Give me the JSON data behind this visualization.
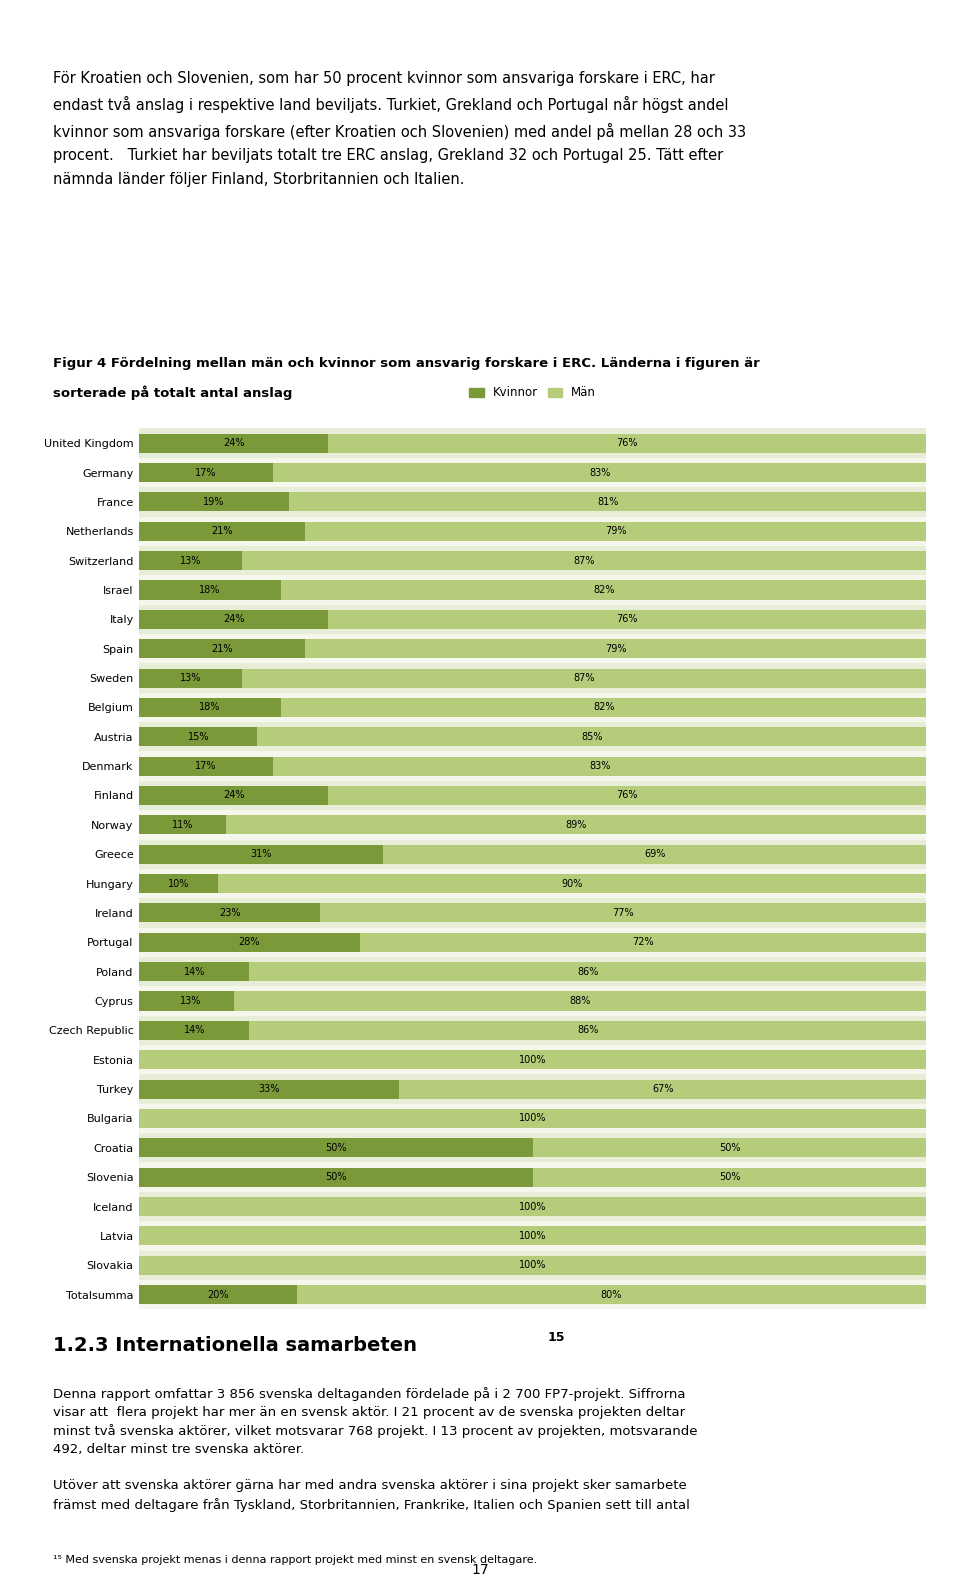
{
  "title_line1": "Figur 4 Fördelning mellan män och kvinnor som ansvarig forskare i ERC. Länderna i figuren är",
  "title_line2": "sorterade på totalt antal anslag",
  "legend_labels": [
    "Kvinnor",
    "Män"
  ],
  "color_kvinnor": "#7a9a3a",
  "color_man": "#b5cc7a",
  "color_bg_odd": "#e8edd8",
  "color_bg_even": "#f5f7ed",
  "text_above": "För Kroatien och Slovenien, som har 50 procent kvinnor som ansvariga forskare i ERC, har\nendast två anslag i respektive land beviljats. Turkiet, Grekland och Portugal når högst andel\nkvinnor som ansvariga forskare (efter Kroatien och Slovenien) med andel på mellan 28 och 33\nprocent.   Turkiet har beviljats totalt tre ERC anslag, Grekland 32 och Portugal 25. Tätt efter\nnämnda länder följer Finland, Storbritannien och Italien.",
  "section_title": "1.2.3 Internationella samarbeten",
  "section_super": "15",
  "para1": "Denna rapport omfattar 3 856 svenska deltaganden fördelade på i 2 700 FP7-projekt. Siffrorna\nvisar att  flera projekt har mer än en svensk aktör. I 21 procent av de svenska projekten deltar\nminst två svenska aktörer, vilket motsvarar 768 projekt. I 13 procent av projekten, motsvarande\n492, deltar minst tre svenska aktörer.",
  "para2": "Utöver att svenska aktörer gärna har med andra svenska aktörer i sina projekt sker samarbete\nfrämst med deltagare från Tyskland, Storbritannien, Frankrike, Italien och Spanien sett till antal",
  "footnote_line": "¹⁵ Med svenska projekt menas i denna rapport projekt med minst en svensk deltagare.",
  "page_num": "17",
  "categories": [
    "United Kingdom",
    "Germany",
    "France",
    "Netherlands",
    "Switzerland",
    "Israel",
    "Italy",
    "Spain",
    "Sweden",
    "Belgium",
    "Austria",
    "Denmark",
    "Finland",
    "Norway",
    "Greece",
    "Hungary",
    "Ireland",
    "Portugal",
    "Poland",
    "Cyprus",
    "Czech Republic",
    "Estonia",
    "Turkey",
    "Bulgaria",
    "Croatia",
    "Slovenia",
    "Iceland",
    "Latvia",
    "Slovakia",
    "Totalsumma"
  ],
  "kvinnor": [
    24,
    17,
    19,
    21,
    13,
    18,
    24,
    21,
    13,
    18,
    15,
    17,
    24,
    11,
    31,
    10,
    23,
    28,
    14,
    13,
    14,
    0,
    33,
    0,
    50,
    50,
    0,
    0,
    0,
    20
  ],
  "man": [
    76,
    83,
    81,
    79,
    87,
    82,
    76,
    79,
    87,
    82,
    85,
    83,
    76,
    89,
    69,
    90,
    77,
    72,
    86,
    88,
    86,
    100,
    67,
    100,
    50,
    50,
    100,
    100,
    100,
    80
  ]
}
